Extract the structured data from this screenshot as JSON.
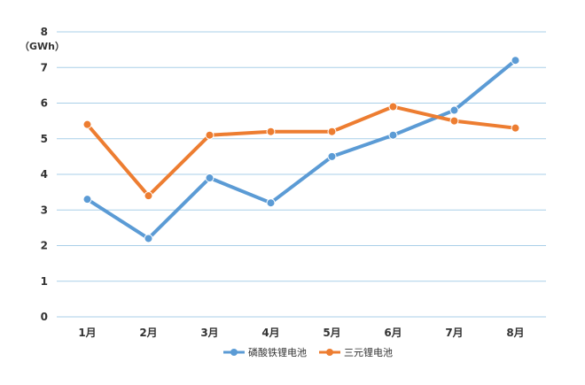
{
  "chart_data": {
    "type": "line",
    "title": "",
    "xlabel": "",
    "ylabel": "（GWh）",
    "categories": [
      "1月",
      "2月",
      "3月",
      "4月",
      "5月",
      "6月",
      "7月",
      "8月"
    ],
    "ylim": [
      0,
      8
    ],
    "yticks": [
      0,
      1,
      2,
      3,
      4,
      5,
      6,
      7,
      8
    ],
    "grid": true,
    "legend": "bottom",
    "series": [
      {
        "name": "磷酸铁锂电池",
        "color": "#5b9bd5",
        "values": [
          3.3,
          2.2,
          3.9,
          3.2,
          4.5,
          5.1,
          5.8,
          7.2
        ]
      },
      {
        "name": "三元锂电池",
        "color": "#ed7d31",
        "values": [
          5.4,
          3.4,
          5.1,
          5.2,
          5.2,
          5.9,
          5.5,
          5.3
        ]
      }
    ]
  }
}
